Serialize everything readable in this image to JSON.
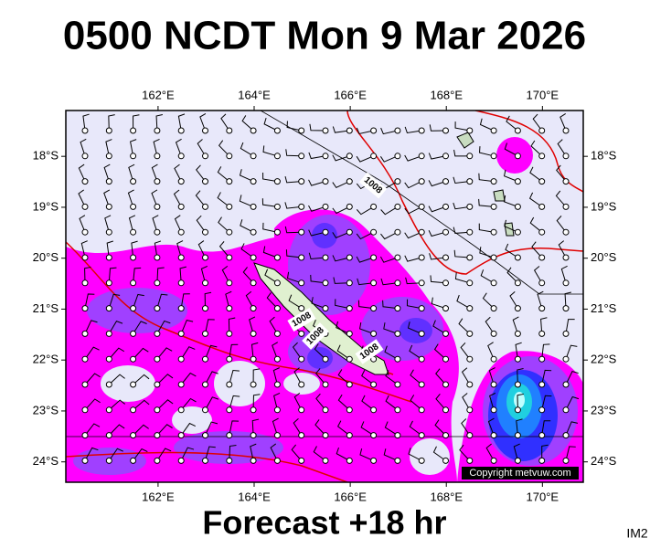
{
  "title": "0500 NCDT Mon 9 Mar 2026",
  "footer": "Forecast +18 hr",
  "image_id": "IM2",
  "copyright": "Copyright metvuw.com",
  "map": {
    "lonlim": [
      160.08,
      170.85
    ],
    "latlim": [
      -17.1,
      -24.4
    ],
    "lonticks": [
      {
        "value": 162,
        "label": "162°E"
      },
      {
        "value": 164,
        "label": "164°E"
      },
      {
        "value": 166,
        "label": "166°E"
      },
      {
        "value": 168,
        "label": "168°E"
      },
      {
        "value": 170,
        "label": "170°E"
      }
    ],
    "latticks": [
      {
        "value": -18,
        "label": "18°S"
      },
      {
        "value": -19,
        "label": "19°S"
      },
      {
        "value": -20,
        "label": "20°S"
      },
      {
        "value": -21,
        "label": "21°S"
      },
      {
        "value": -22,
        "label": "22°S"
      },
      {
        "value": -23,
        "label": "23°S"
      },
      {
        "value": -24,
        "label": "24°S"
      }
    ],
    "isobar_labels": [
      "1008",
      "1008",
      "1008",
      "1008"
    ]
  }
}
